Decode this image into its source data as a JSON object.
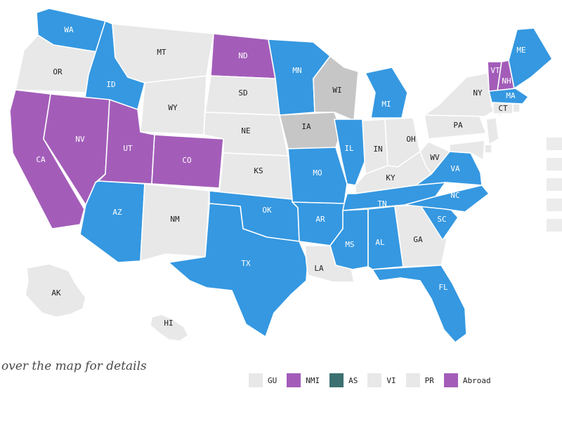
{
  "colors": {
    "blue": "#3598e1",
    "purple": "#a35db9",
    "teal": "#3c7070",
    "gray": "#e8e8e8",
    "dark_gray": "#c6c6c6"
  },
  "states": [
    {
      "id": "AK",
      "label": "AK",
      "fill": "gray"
    },
    {
      "id": "HI",
      "label": "HI",
      "fill": "gray"
    },
    {
      "id": "WA",
      "label": "WA",
      "fill": "blue"
    },
    {
      "id": "OR",
      "label": "OR",
      "fill": "gray"
    },
    {
      "id": "CA",
      "label": "CA",
      "fill": "purple"
    },
    {
      "id": "ID",
      "label": "ID",
      "fill": "blue"
    },
    {
      "id": "NV",
      "label": "NV",
      "fill": "purple"
    },
    {
      "id": "MT",
      "label": "MT",
      "fill": "gray"
    },
    {
      "id": "WY",
      "label": "WY",
      "fill": "gray"
    },
    {
      "id": "UT",
      "label": "UT",
      "fill": "purple"
    },
    {
      "id": "AZ",
      "label": "AZ",
      "fill": "blue"
    },
    {
      "id": "CO",
      "label": "CO",
      "fill": "purple"
    },
    {
      "id": "NM",
      "label": "NM",
      "fill": "gray"
    },
    {
      "id": "ND",
      "label": "ND",
      "fill": "purple"
    },
    {
      "id": "SD",
      "label": "SD",
      "fill": "gray"
    },
    {
      "id": "NE",
      "label": "NE",
      "fill": "gray"
    },
    {
      "id": "KS",
      "label": "KS",
      "fill": "gray"
    },
    {
      "id": "OK",
      "label": "OK",
      "fill": "blue"
    },
    {
      "id": "TX",
      "label": "TX",
      "fill": "blue"
    },
    {
      "id": "MN",
      "label": "MN",
      "fill": "blue"
    },
    {
      "id": "IA",
      "label": "IA",
      "fill": "dark_gray"
    },
    {
      "id": "MO",
      "label": "MO",
      "fill": "blue"
    },
    {
      "id": "AR",
      "label": "AR",
      "fill": "blue"
    },
    {
      "id": "LA",
      "label": "LA",
      "fill": "gray"
    },
    {
      "id": "WI",
      "label": "WI",
      "fill": "dark_gray"
    },
    {
      "id": "IL",
      "label": "IL",
      "fill": "blue"
    },
    {
      "id": "MI",
      "label": "MI",
      "fill": "blue"
    },
    {
      "id": "IN",
      "label": "IN",
      "fill": "gray"
    },
    {
      "id": "OH",
      "label": "OH",
      "fill": "gray"
    },
    {
      "id": "KY",
      "label": "KY",
      "fill": "gray"
    },
    {
      "id": "TN",
      "label": "TN",
      "fill": "blue"
    },
    {
      "id": "MS",
      "label": "MS",
      "fill": "blue"
    },
    {
      "id": "AL",
      "label": "AL",
      "fill": "blue"
    },
    {
      "id": "GA",
      "label": "GA",
      "fill": "gray"
    },
    {
      "id": "FL",
      "label": "FL",
      "fill": "blue"
    },
    {
      "id": "SC",
      "label": "SC",
      "fill": "blue"
    },
    {
      "id": "NC",
      "label": "NC",
      "fill": "blue"
    },
    {
      "id": "VA",
      "label": "VA",
      "fill": "blue"
    },
    {
      "id": "WV",
      "label": "WV",
      "fill": "gray"
    },
    {
      "id": "PA",
      "label": "PA",
      "fill": "gray"
    },
    {
      "id": "NY",
      "label": "NY",
      "fill": "gray"
    },
    {
      "id": "VT",
      "label": "VT",
      "fill": "purple"
    },
    {
      "id": "NH",
      "label": "NH",
      "fill": "purple"
    },
    {
      "id": "ME",
      "label": "ME",
      "fill": "blue"
    },
    {
      "id": "MA",
      "label": "MA",
      "fill": "blue"
    },
    {
      "id": "CT",
      "label": "CT",
      "fill": "gray"
    },
    {
      "id": "RI",
      "label": "",
      "fill": "gray"
    },
    {
      "id": "NJ",
      "label": "",
      "fill": "gray"
    },
    {
      "id": "DE",
      "label": "",
      "fill": "gray"
    },
    {
      "id": "MD",
      "label": "",
      "fill": "gray"
    }
  ],
  "hint_text": "over the map for details",
  "legend": [
    {
      "label": "GU",
      "fill": "gray"
    },
    {
      "label": "NMI",
      "fill": "purple"
    },
    {
      "label": "AS",
      "fill": "teal"
    },
    {
      "label": "VI",
      "fill": "gray"
    },
    {
      "label": "PR",
      "fill": "gray"
    },
    {
      "label": "Abroad",
      "fill": "purple"
    }
  ]
}
